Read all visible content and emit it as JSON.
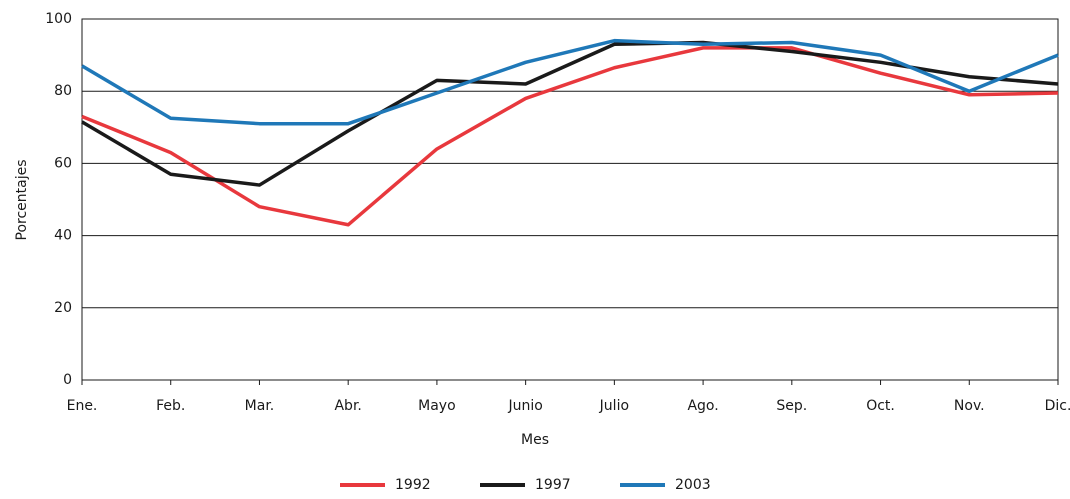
{
  "chart_data": {
    "type": "line",
    "x_label": "Mes",
    "y_label": "Porcentajes",
    "categories": [
      "Ene.",
      "Feb.",
      "Mar.",
      "Abr.",
      "Mayo",
      "Junio",
      "Julio",
      "Ago.",
      "Sep.",
      "Oct.",
      "Nov.",
      "Dic."
    ],
    "series": [
      {
        "name": "1992",
        "color": "#e8383d",
        "values": [
          73,
          63,
          48,
          43,
          64,
          78,
          86.5,
          92,
          92,
          85,
          79,
          79.5
        ]
      },
      {
        "name": "1997",
        "color": "#1a1a1a",
        "values": [
          71.5,
          57,
          54,
          69,
          83,
          82,
          93,
          93.5,
          91,
          88,
          84,
          82
        ]
      },
      {
        "name": "2003",
        "color": "#1f78b8",
        "values": [
          87,
          72.5,
          71,
          71,
          79.5,
          88,
          94,
          93,
          93.5,
          90,
          80,
          90
        ]
      }
    ],
    "ylim": [
      0,
      100
    ],
    "yticks": [
      0,
      20,
      40,
      60,
      80,
      100
    ],
    "grid": true,
    "legend": "bottom"
  }
}
